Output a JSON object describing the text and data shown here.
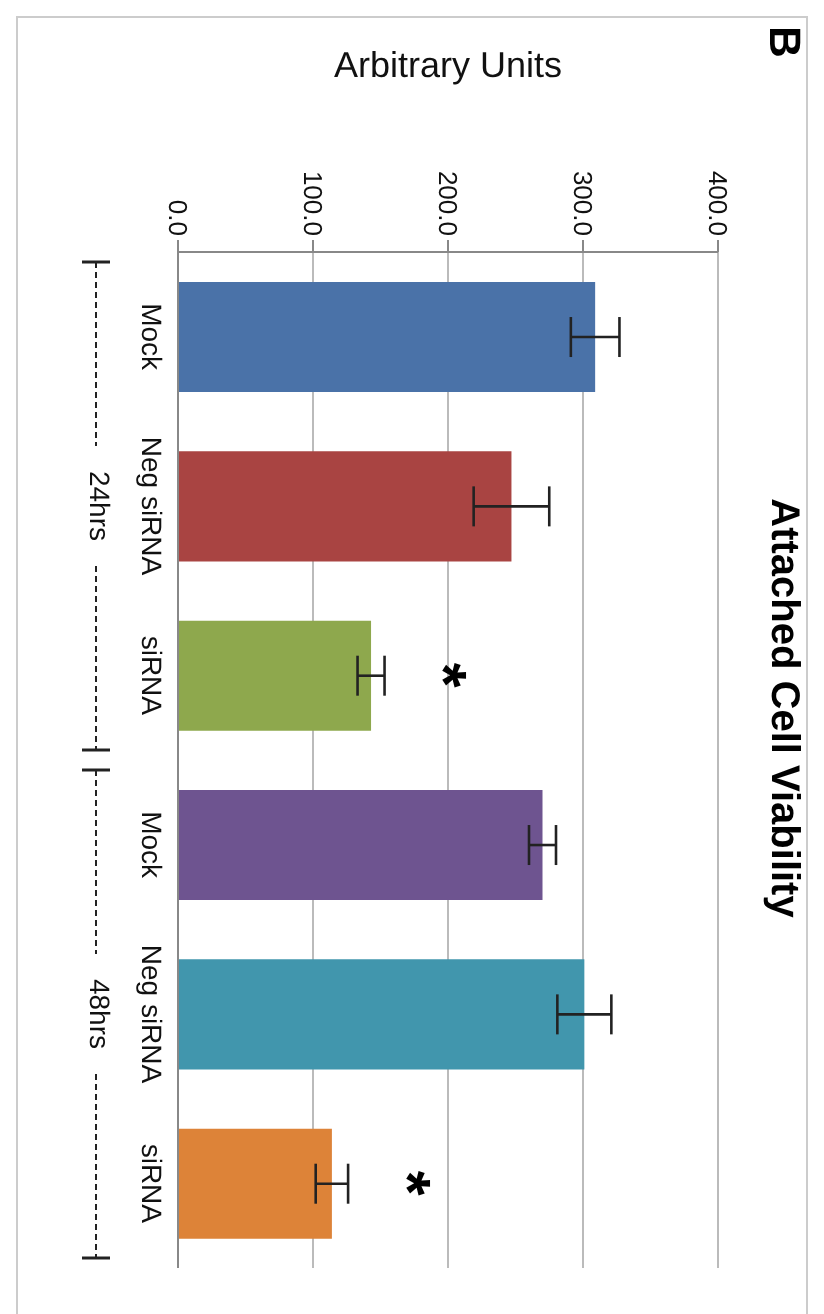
{
  "chart_data": {
    "type": "bar",
    "orientation": "horizontal",
    "title": "Attached Cell Viability",
    "xlabel": "Arbitrary Units",
    "categories": [
      "Mock",
      "Neg siRNA",
      "siRNA",
      "Mock",
      "Neg siRNA",
      "siRNA"
    ],
    "values": [
      309,
      247,
      143,
      270,
      301,
      114
    ],
    "errors": [
      18,
      28,
      10,
      10,
      20,
      12
    ],
    "colors": [
      "#4a72a8",
      "#a94442",
      "#8ea84d",
      "#6e5490",
      "#4196ad",
      "#dd8338"
    ],
    "xlim": [
      0,
      400
    ],
    "xticks": [
      {
        "value": 0,
        "label": "0.0"
      },
      {
        "value": 100,
        "label": "100.0"
      },
      {
        "value": 200,
        "label": "200.0"
      },
      {
        "value": 300,
        "label": "300.0"
      },
      {
        "value": 400,
        "label": "400.0"
      }
    ],
    "grid": "x",
    "annotations": [
      "B",
      "24hrs",
      "48hrs",
      "*",
      "*"
    ]
  }
}
